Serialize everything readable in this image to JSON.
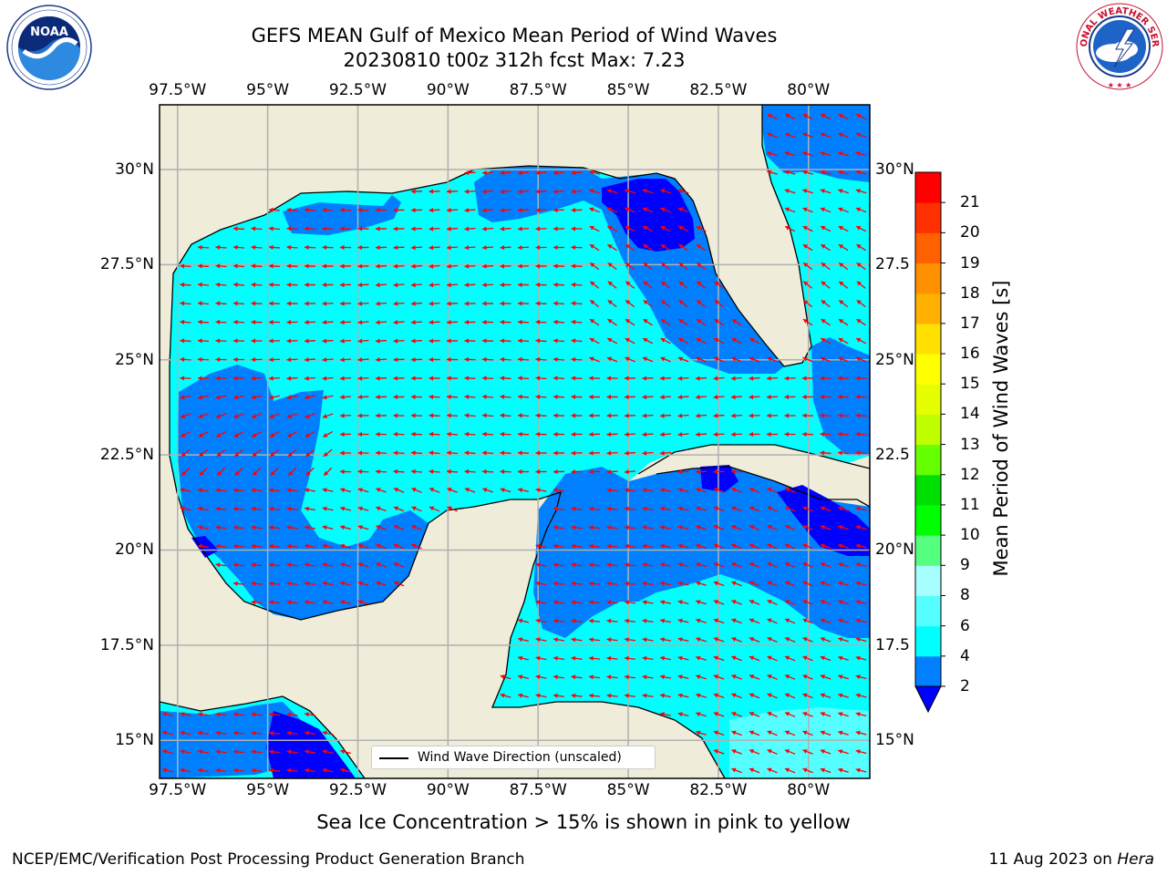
{
  "title": {
    "line1": "GEFS MEAN Gulf of Mexico Mean Period of Wind Waves",
    "line2": "20230810 t00z 312h fcst   Max: 7.23"
  },
  "axes": {
    "x_ticks": [
      "97.5°W",
      "95°W",
      "92.5°W",
      "90°W",
      "87.5°W",
      "85°W",
      "82.5°W",
      "80°W"
    ],
    "y_ticks_left": [
      "30°N",
      "27.5°N",
      "25°N",
      "22.5°N",
      "20°N",
      "17.5°N",
      "15°N"
    ],
    "y_ticks_right": [
      "30°N",
      "27.5",
      "25°N",
      "22.5",
      "20°N",
      "17.5",
      "15°N"
    ]
  },
  "map": {
    "lon_range": [
      -98.0,
      -78.3
    ],
    "lat_range": [
      14.0,
      31.7
    ],
    "land_color": "#efecd9",
    "colors": {
      "band_2_4": "#0080ff",
      "band_4_6": "#00ffff",
      "band_below_2": "#0000ff",
      "band_6_8": "#55ffff"
    },
    "vector_color": "#ff0000",
    "gridlines": true
  },
  "legend": {
    "label": "Wind Wave Direction (unscaled)",
    "position": "lower-center"
  },
  "colorbar": {
    "label": "Mean Period of Wind Waves [s]",
    "tick_labels": [
      "2",
      "4",
      "6",
      "8",
      "9",
      "10",
      "11",
      "12",
      "13",
      "14",
      "15",
      "16",
      "17",
      "18",
      "19",
      "20",
      "21"
    ],
    "colors": [
      "#0080ff",
      "#00ffff",
      "#55ffff",
      "#a8ffff",
      "#55ff7f",
      "#00ff00",
      "#00e000",
      "#66ff00",
      "#c0ff00",
      "#e6ff00",
      "#ffff00",
      "#ffe000",
      "#ffb000",
      "#ff9000",
      "#ff6000",
      "#ff3000",
      "#ff0000"
    ],
    "under_color": "#0000ff"
  },
  "note": "Sea Ice Concentration > 15% is shown in pink to yellow",
  "footer": {
    "left": "NCEP/EMC/Verification Post Processing Product Generation Branch",
    "right_date": "11 Aug 2023 on ",
    "right_machine": "Hera"
  },
  "logos": {
    "noaa_text": "NOAA",
    "noaa_ring": "NATIONAL OCEANIC AND ATMOSPHERIC ADMINISTRATION · U.S. DEPARTMENT OF COMMERCE",
    "nws_ring": "NATIONAL WEATHER SERVICE"
  }
}
